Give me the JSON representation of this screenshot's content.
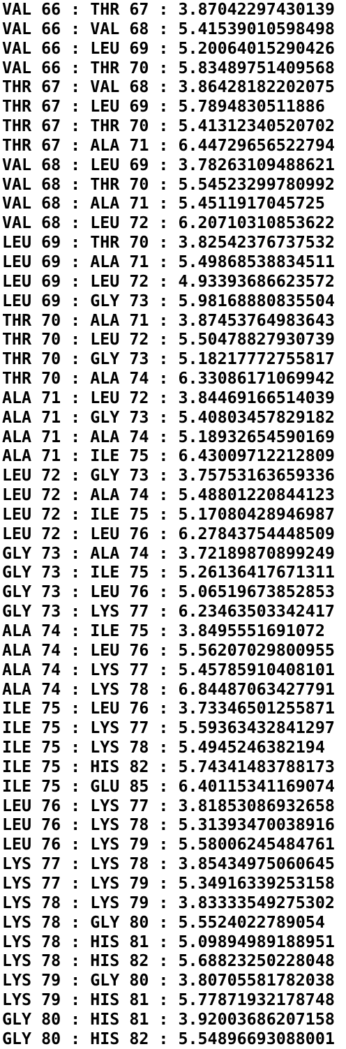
{
  "lines": [
    "VAL 66 : THR 67 : 3.87042297430139",
    "VAL 66 : VAL 68 : 5.41539010598498",
    "VAL 66 : LEU 69 : 5.20064015290426",
    "VAL 66 : THR 70 : 5.83489751409568",
    "THR 67 : VAL 68 : 3.86428182202075",
    "THR 67 : LEU 69 : 5.7894830511886",
    "THR 67 : THR 70 : 5.41312340520702",
    "THR 67 : ALA 71 : 6.44729656522794",
    "VAL 68 : LEU 69 : 3.78263109488621",
    "VAL 68 : THR 70 : 5.54523299780992",
    "VAL 68 : ALA 71 : 5.4511917045725",
    "VAL 68 : LEU 72 : 6.20710310853622",
    "LEU 69 : THR 70 : 3.82542376737532",
    "LEU 69 : ALA 71 : 5.49868538834511",
    "LEU 69 : LEU 72 : 4.93393686623572",
    "LEU 69 : GLY 73 : 5.98168880835504",
    "THR 70 : ALA 71 : 3.87453764983643",
    "THR 70 : LEU 72 : 5.50478827930739",
    "THR 70 : GLY 73 : 5.18217772755817",
    "THR 70 : ALA 74 : 6.33086171069942",
    "ALA 71 : LEU 72 : 3.84469166514039",
    "ALA 71 : GLY 73 : 5.40803457829182",
    "ALA 71 : ALA 74 : 5.18932654590169",
    "ALA 71 : ILE 75 : 6.43009712212809",
    "LEU 72 : GLY 73 : 3.75753163659336",
    "LEU 72 : ALA 74 : 5.48801220844123",
    "LEU 72 : ILE 75 : 5.17080428946987",
    "LEU 72 : LEU 76 : 6.27843754448509",
    "GLY 73 : ALA 74 : 3.72189870899249",
    "GLY 73 : ILE 75 : 5.26136417671311",
    "GLY 73 : LEU 76 : 5.06519673852853",
    "GLY 73 : LYS 77 : 6.23463503342417",
    "ALA 74 : ILE 75 : 3.8495551691072",
    "ALA 74 : LEU 76 : 5.56207029800955",
    "ALA 74 : LYS 77 : 5.45785910408101",
    "ALA 74 : LYS 78 : 6.84487063427791",
    "ILE 75 : LEU 76 : 3.73346501255871",
    "ILE 75 : LYS 77 : 5.59363432841297",
    "ILE 75 : LYS 78 : 5.4945246382194",
    "ILE 75 : HIS 82 : 5.74341483788173",
    "ILE 75 : GLU 85 : 6.40115341169074",
    "LEU 76 : LYS 77 : 3.81853086932658",
    "LEU 76 : LYS 78 : 5.31393470038916",
    "LEU 76 : LYS 79 : 5.58006245484761",
    "LYS 77 : LYS 78 : 3.85434975060645",
    "LYS 77 : LYS 79 : 5.34916339253158",
    "LYS 78 : LYS 79 : 3.83333549275302",
    "LYS 78 : GLY 80 : 5.5524022789054",
    "LYS 78 : HIS 81 : 5.09894989188951",
    "LYS 78 : HIS 82 : 5.68823250228048",
    "LYS 79 : GLY 80 : 3.80705581782038",
    "LYS 79 : HIS 81 : 5.77871932178748",
    "GLY 80 : HIS 81 : 3.92003686207158",
    "GLY 80 : HIS 82 : 5.54896693088001"
  ]
}
